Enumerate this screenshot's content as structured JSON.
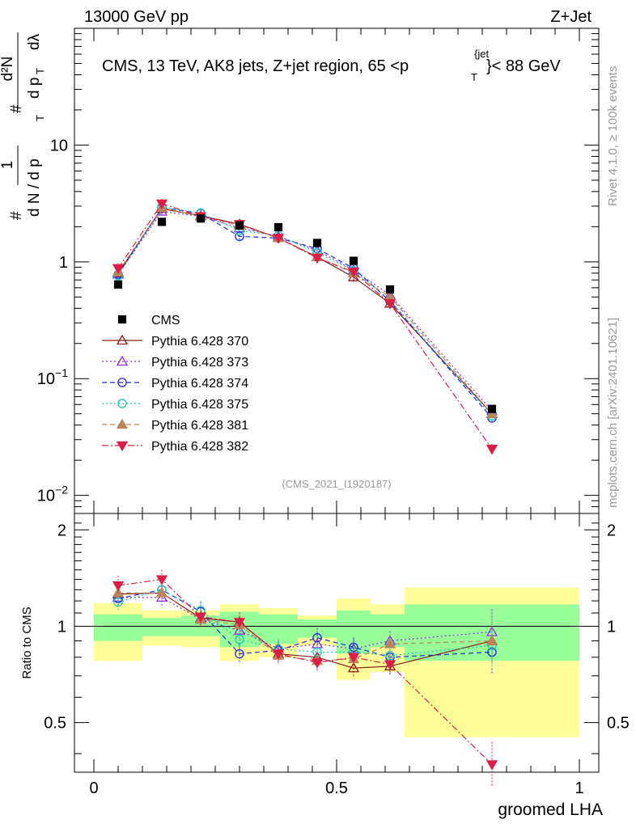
{
  "header": {
    "left": "13000 GeV pp",
    "right": "Z+Jet"
  },
  "side_labels": {
    "rivet": "Rivet 4.1.0, ≥ 100k events",
    "mcplots": "mcplots.cern.ch [arXiv:2401.10621]"
  },
  "chart_data": [
    {
      "type": "scatter",
      "title": "CMS, 13 TeV, AK8 jets, Z+jet region, 65 <p_T^{jet}< 88 GeV",
      "title_parts": {
        "prefix": "CMS, 13 TeV, AK8 jets, Z+jet region, 65 <",
        "p": "p",
        "sub": "T",
        "sup": "{jet",
        "suffix": "}< 88 GeV"
      },
      "ylabel_parts": {
        "hash": "#",
        "frac_num": "1",
        "frac_den": "d N / d p",
        "den_sub": "T",
        "hash2": "#",
        "dN": "d²N",
        "dpT": "d p",
        "dpT_sub": "T",
        "dl": "dλ"
      },
      "xlabel": "groomed LHA",
      "yscale": "log",
      "ylim": [
        0.007,
        100
      ],
      "xlim": [
        -0.04,
        1.04
      ],
      "y_tick_labels": [
        {
          "value": 0.01,
          "base": "10",
          "exp": "−2"
        },
        {
          "value": 0.1,
          "base": "10",
          "exp": "−1"
        },
        {
          "value": 1,
          "base": "1",
          "exp": ""
        },
        {
          "value": 10,
          "base": "10",
          "exp": ""
        }
      ],
      "watermark": "(CMS_2021_I1920187)",
      "data": {
        "name": "CMS",
        "x": [
          0.05,
          0.14,
          0.22,
          0.3,
          0.38,
          0.46,
          0.535,
          0.61,
          0.82
        ],
        "y": [
          0.64,
          2.2,
          2.35,
          2.05,
          1.98,
          1.45,
          1.02,
          0.58,
          0.055
        ]
      },
      "series": [
        {
          "name": "Pythia 6.428 370",
          "color": "#8b1a1a",
          "dash": "",
          "marker": "triangle-up-open",
          "x": [
            0.05,
            0.14,
            0.22,
            0.3,
            0.38,
            0.46,
            0.535,
            0.61,
            0.82
          ],
          "y": [
            0.8,
            2.85,
            2.48,
            2.1,
            1.6,
            1.1,
            0.74,
            0.44,
            0.05
          ]
        },
        {
          "name": "Pythia 6.428 373",
          "color": "#8a2be2",
          "dash": "2,3",
          "marker": "triangle-up-open",
          "x": [
            0.05,
            0.14,
            0.22,
            0.3,
            0.38,
            0.46,
            0.535,
            0.61,
            0.82
          ],
          "y": [
            0.78,
            2.7,
            2.45,
            1.95,
            1.65,
            1.25,
            0.85,
            0.52,
            0.053
          ]
        },
        {
          "name": "Pythia 6.428 374",
          "color": "#1f2ad8",
          "dash": "6,4",
          "marker": "circle-open",
          "x": [
            0.05,
            0.14,
            0.22,
            0.3,
            0.38,
            0.46,
            0.535,
            0.61,
            0.82
          ],
          "y": [
            0.78,
            2.9,
            2.6,
            1.65,
            1.6,
            1.3,
            0.88,
            0.46,
            0.046
          ]
        },
        {
          "name": "Pythia 6.428 375",
          "color": "#1cc8b4",
          "dash": "2,3",
          "marker": "circle-open",
          "x": [
            0.05,
            0.14,
            0.22,
            0.3,
            0.38,
            0.46,
            0.535,
            0.61,
            0.82
          ],
          "y": [
            0.76,
            2.95,
            2.62,
            1.85,
            1.68,
            1.2,
            0.84,
            0.47,
            0.048
          ]
        },
        {
          "name": "Pythia 6.428 381",
          "color": "#b8865a",
          "dash": "6,4",
          "marker": "triangle-up-filled",
          "x": [
            0.05,
            0.14,
            0.22,
            0.3,
            0.38,
            0.46,
            0.535,
            0.61,
            0.82
          ],
          "y": [
            0.82,
            2.9,
            2.45,
            2.05,
            1.6,
            1.1,
            0.8,
            0.5,
            0.05
          ]
        },
        {
          "name": "Pythia 6.428 382",
          "color": "#dc1e46",
          "dash": "8,3,2,3",
          "marker": "triangle-down-filled",
          "x": [
            0.05,
            0.14,
            0.22,
            0.3,
            0.38,
            0.46,
            0.535,
            0.61,
            0.82
          ],
          "y": [
            0.88,
            3.15,
            2.45,
            2.1,
            1.6,
            1.08,
            0.82,
            0.44,
            0.025
          ]
        }
      ]
    },
    {
      "type": "line",
      "title": "",
      "xlabel": "groomed LHA",
      "ylabel": "Ratio to CMS",
      "ylim": [
        0.35,
        2.25
      ],
      "xlim": [
        -0.04,
        1.04
      ],
      "y_tick_labels": [
        0.5,
        1,
        2
      ],
      "x_tick_labels": [
        0,
        0.5,
        1
      ],
      "x_tick_text": [
        "0",
        "0.5",
        "1"
      ],
      "y_tick_text": [
        "0.5",
        "1",
        "2"
      ],
      "bins": [
        {
          "lo": 0.0,
          "hi": 0.1,
          "yellow": [
            0.78,
            1.18
          ],
          "green": [
            0.9,
            1.09
          ]
        },
        {
          "lo": 0.1,
          "hi": 0.18,
          "yellow": [
            0.87,
            1.12
          ],
          "green": [
            0.93,
            1.06
          ]
        },
        {
          "lo": 0.18,
          "hi": 0.26,
          "yellow": [
            0.86,
            1.12
          ],
          "green": [
            0.93,
            1.08
          ]
        },
        {
          "lo": 0.26,
          "hi": 0.34,
          "yellow": [
            0.78,
            1.17
          ],
          "green": [
            0.86,
            1.11
          ]
        },
        {
          "lo": 0.34,
          "hi": 0.42,
          "yellow": [
            0.8,
            1.14
          ],
          "green": [
            0.88,
            1.09
          ]
        },
        {
          "lo": 0.42,
          "hi": 0.5,
          "yellow": [
            0.87,
            1.08
          ],
          "green": [
            0.92,
            1.05
          ]
        },
        {
          "lo": 0.5,
          "hi": 0.57,
          "yellow": [
            0.68,
            1.22
          ],
          "green": [
            0.82,
            1.12
          ]
        },
        {
          "lo": 0.57,
          "hi": 0.64,
          "yellow": [
            0.72,
            1.17
          ],
          "green": [
            0.86,
            1.09
          ]
        },
        {
          "lo": 0.64,
          "hi": 1.0,
          "yellow": [
            0.45,
            1.32
          ],
          "green": [
            0.78,
            1.17
          ]
        }
      ],
      "series": [
        {
          "name": "Pythia 6.428 370",
          "y": [
            1.26,
            1.27,
            1.06,
            1.03,
            0.82,
            0.8,
            0.74,
            0.75,
            0.9
          ]
        },
        {
          "name": "Pythia 6.428 373",
          "y": [
            1.23,
            1.23,
            1.05,
            0.97,
            0.85,
            0.88,
            0.85,
            0.9,
            0.96
          ]
        },
        {
          "name": "Pythia 6.428 374",
          "y": [
            1.22,
            1.3,
            1.11,
            0.82,
            0.84,
            0.92,
            0.86,
            0.8,
            0.83
          ]
        },
        {
          "name": "Pythia 6.428 375",
          "y": [
            1.19,
            1.3,
            1.12,
            0.91,
            0.85,
            0.83,
            0.83,
            0.81,
            0.87
          ]
        },
        {
          "name": "Pythia 6.428 381",
          "y": [
            1.27,
            1.27,
            1.05,
            1.01,
            0.81,
            0.78,
            0.79,
            0.88,
            0.9
          ]
        },
        {
          "name": "Pythia 6.428 382",
          "y": [
            1.34,
            1.4,
            1.07,
            1.03,
            0.82,
            0.77,
            0.8,
            0.76,
            0.37
          ]
        }
      ]
    }
  ]
}
